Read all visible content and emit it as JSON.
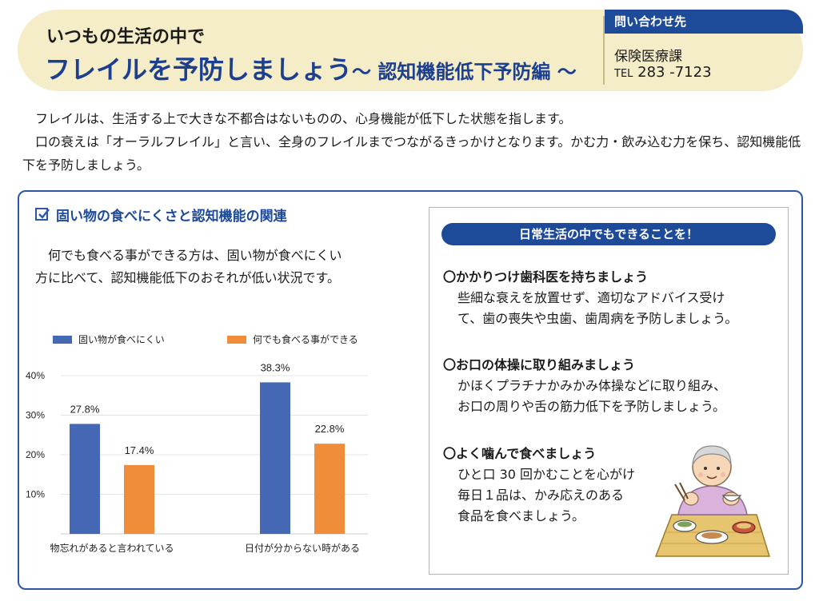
{
  "header": {
    "subtitle": "いつもの生活の中で",
    "title": "フレイルを予防しましょう",
    "title_sub": "～ 認知機能低下予防編 ～"
  },
  "contact": {
    "heading": "問い合わせ先",
    "department": "保険医療課",
    "tel_label": "TEL",
    "tel_number": "283 -7123"
  },
  "intro": [
    "フレイルは、生活する上で大きな不都合はないものの、心身機能が低下した状態を指します。",
    "口の衰えは「オーラルフレイル」と言い、全身のフレイルまでつながるきっかけとなります。かむ力・飲み込む力を保ち、認知機能低下を予防しましょう。"
  ],
  "section": {
    "title": "固い物の食べにくさと認知機能の関連",
    "desc_lines": [
      "　何でも食べる事ができる方は、固い物が食べにくい",
      "方に比べて、認知機能低下のおそれが低い状況です。"
    ]
  },
  "chart_data": {
    "type": "bar",
    "categories": [
      "物忘れがあると言われている",
      "日付が分からない時がある"
    ],
    "series": [
      {
        "name": "固い物が食べにくい",
        "values": [
          27.8,
          38.3
        ],
        "color": "#4468b4"
      },
      {
        "name": "何でも食べる事ができる",
        "values": [
          17.4,
          22.8
        ],
        "color": "#ef8d3a"
      }
    ],
    "y_ticks": [
      "10%",
      "20%",
      "30%",
      "40%"
    ],
    "ylim": [
      0,
      40
    ],
    "value_suffix": "%",
    "grid": true,
    "legend_position": "top"
  },
  "tips": {
    "banner": "日常生活の中でもできることを！",
    "items": [
      {
        "title": "〇かかりつけ歯科医を持ちましょう",
        "lines": [
          "些細な衰えを放置せず、適切なアドバイス受け",
          "て、歯の喪失や虫歯、歯周病を予防しましょう。"
        ]
      },
      {
        "title": "〇お口の体操に取り組みましょう",
        "lines": [
          "かほくプラチナかみかみ体操などに取り組み、",
          "お口の周りや舌の筋力低下を予防しましょう。"
        ]
      },
      {
        "title": "〇よく噛んで食べましょう",
        "lines": [
          "ひと口 30 回かむことを心がけ",
          "毎日１品は、かみ応えのある",
          "食品を食べましょう。"
        ]
      }
    ]
  },
  "colors": {
    "navy": "#1e4a9a",
    "header_bg": "#f4edc8",
    "bar_blue": "#4468b4",
    "bar_orange": "#ef8d3a"
  }
}
